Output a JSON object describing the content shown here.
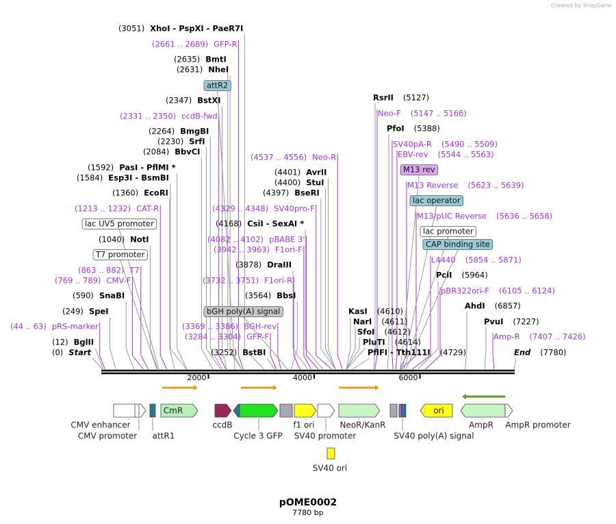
{
  "credit": "Created by SnapGene",
  "title": "pOME0002",
  "subtitle": "7780 bp",
  "length": 7780,
  "ruler": {
    "ticks": [
      2000,
      4000,
      6000
    ]
  },
  "enzymes": [
    {
      "name": "XhoI  - PspXI  - PaeR7I",
      "site": 3051,
      "site_label": "(3051)"
    },
    {
      "name": "BmtI",
      "site": 2635,
      "site_label": "(2635)"
    },
    {
      "name": "NheI",
      "site": 2631,
      "site_label": "(2631)"
    },
    {
      "name": "BstXI",
      "site": 2347,
      "site_label": "(2347)"
    },
    {
      "name": "BmgBI",
      "site": 2264,
      "site_label": "(2264)"
    },
    {
      "name": "SrfI",
      "site": 2230,
      "site_label": "(2230)"
    },
    {
      "name": "BbvCI",
      "site": 2084,
      "site_label": "(2084)"
    },
    {
      "name": "PasI  - PflMI *",
      "site": 1592,
      "site_label": "(1592)"
    },
    {
      "name": "Esp3I  - BsmBI",
      "site": 1584,
      "site_label": "(1584)"
    },
    {
      "name": "EcoRI",
      "site": 1360,
      "site_label": "(1360)"
    },
    {
      "name": "NotI",
      "site": 1040,
      "site_label": "(1040)"
    },
    {
      "name": "SnaBI",
      "site": 590,
      "site_label": "(590)"
    },
    {
      "name": "SpeI",
      "site": 249,
      "site_label": "(249)"
    },
    {
      "name": "BglII",
      "site": 12,
      "site_label": "(12)"
    },
    {
      "name": "Start",
      "site": 0,
      "site_label": "(0)"
    },
    {
      "name": "CsiI  - SexAI *",
      "site": 4168,
      "site_label": "(4168)"
    },
    {
      "name": "DraIII",
      "site": 3878,
      "site_label": "(3878)"
    },
    {
      "name": "BbsI",
      "site": 3564,
      "site_label": "(3564)"
    },
    {
      "name": "BstBI",
      "site": 3252,
      "site_label": "(3252)"
    },
    {
      "name": "AvrII",
      "site": 4401,
      "site_label": "(4401)"
    },
    {
      "name": "StuI",
      "site": 4400,
      "site_label": "(4400)"
    },
    {
      "name": "BseRI",
      "site": 4397,
      "site_label": "(4397)"
    },
    {
      "name": "KasI",
      "site": 4610,
      "site_label": "(4610)"
    },
    {
      "name": "NarI",
      "site": 4611,
      "site_label": "(4611)"
    },
    {
      "name": "SfoI",
      "site": 4612,
      "site_label": "(4612)"
    },
    {
      "name": "PluTI",
      "site": 4614,
      "site_label": "(4614)"
    },
    {
      "name": "PflFI  - Tth111I",
      "site": 4729,
      "site_label": "(4729)"
    },
    {
      "name": "RsrII",
      "site": 5127,
      "site_label": "(5127)"
    },
    {
      "name": "PfoI",
      "site": 5388,
      "site_label": "(5388)"
    },
    {
      "name": "PciI",
      "site": 5964,
      "site_label": "(5964)"
    },
    {
      "name": "AhdI",
      "site": 6857,
      "site_label": "(6857)"
    },
    {
      "name": "PvuI",
      "site": 7227,
      "site_label": "(7227)"
    },
    {
      "name": "End",
      "site": 7780,
      "site_label": "(7780)"
    }
  ],
  "primers": [
    {
      "name": "GFP-R",
      "start": 2661,
      "end": 2689,
      "range_label": "(2661 .. 2689)"
    },
    {
      "name": "ccdB-fwd",
      "start": 2331,
      "end": 2350,
      "range_label": "(2331 .. 2350)"
    },
    {
      "name": "Neo-R",
      "start": 4537,
      "end": 4556,
      "range_label": "(4537 .. 4556)"
    },
    {
      "name": "CAT-R",
      "start": 1213,
      "end": 1232,
      "range_label": "(1213 .. 1232)"
    },
    {
      "name": "SV40pro-F",
      "start": 4329,
      "end": 4348,
      "range_label": "(4329 .. 4348)"
    },
    {
      "name": "pBABE 3'",
      "start": 4082,
      "end": 4102,
      "range_label": "(4082 .. 4102)"
    },
    {
      "name": "F1ori-F",
      "start": 3942,
      "end": 3963,
      "range_label": "(3942 .. 3963)"
    },
    {
      "name": "T7",
      "start": 863,
      "end": 882,
      "range_label": "(863 .. 882)"
    },
    {
      "name": "CMV-F",
      "start": 769,
      "end": 789,
      "range_label": "(769 .. 789)"
    },
    {
      "name": "F1ori-R",
      "start": 3732,
      "end": 3751,
      "range_label": "(3732 .. 3751)"
    },
    {
      "name": "BGH-rev",
      "start": 3369,
      "end": 3386,
      "range_label": "(3369 .. 3386)"
    },
    {
      "name": "GFP-F",
      "start": 3284,
      "end": 3304,
      "range_label": "(3284 .. 3304)"
    },
    {
      "name": "pRS-marker",
      "start": 44,
      "end": 63,
      "range_label": "(44 .. 63)"
    },
    {
      "name": "Neo-F",
      "start": 5147,
      "end": 5166,
      "range_label": "(5147 .. 5166)"
    },
    {
      "name": "SV40pA-R",
      "start": 5490,
      "end": 5509,
      "range_label": "(5490 .. 5509)"
    },
    {
      "name": "EBV-rev",
      "start": 5544,
      "end": 5563,
      "range_label": "(5544 .. 5563)"
    },
    {
      "name": "M13 Reverse",
      "start": 5623,
      "end": 5639,
      "range_label": "(5623 .. 5639)"
    },
    {
      "name": "M13/pUC Reverse",
      "start": 5636,
      "end": 5658,
      "range_label": "(5636 .. 5658)"
    },
    {
      "name": "L4440",
      "start": 5854,
      "end": 5871,
      "range_label": "(5854 .. 5871)"
    },
    {
      "name": "pBR322ori-F",
      "start": 6105,
      "end": 6124,
      "range_label": "(6105 .. 6124)"
    },
    {
      "name": "Amp-R",
      "start": 7407,
      "end": 7426,
      "range_label": "(7407 .. 7426)"
    }
  ],
  "boxed_features": [
    "attR2",
    "lac UV5 promoter",
    "T7 promoter",
    "bGH poly(A) signal",
    "M13 rev",
    "lac operator",
    "lac promoter",
    "CAP binding site"
  ],
  "features": [
    "CMV enhancer",
    "CMV promoter",
    "attR1",
    "CmR",
    "ccdB",
    "Cycle 3 GFP",
    "f1 ori",
    "SV40 promoter",
    "NeoR/KanR",
    "SV40 poly(A) signal",
    "ori",
    "AmpR",
    "AmpR promoter",
    "SV40 ori"
  ]
}
